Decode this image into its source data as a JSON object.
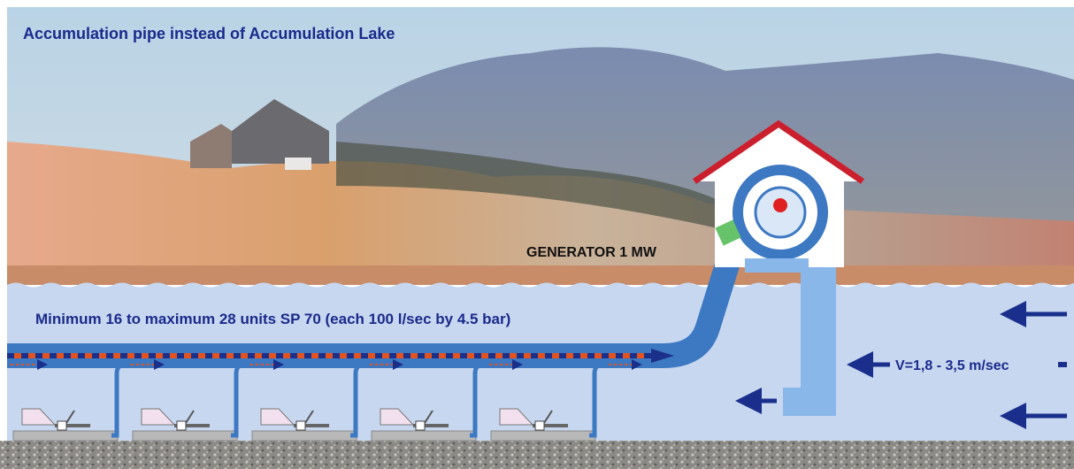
{
  "title": "Accumulation pipe instead of Accumulation Lake",
  "labels": {
    "generator": "GENERATOR 1 MW",
    "units": "Minimum 16 to maximum 28 units SP 70  (each 100 l/sec by 4.5 bar)",
    "velocity": "V=1,8 - 3,5 m/sec"
  }
}
